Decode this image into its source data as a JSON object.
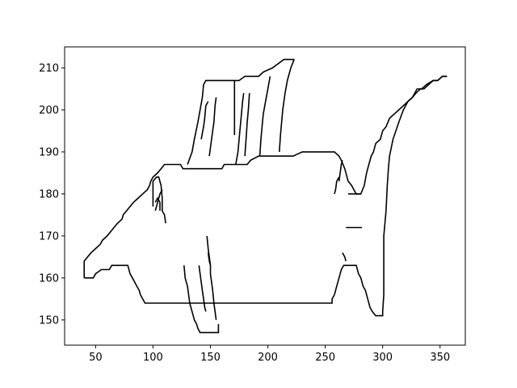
{
  "chart_data": {
    "type": "line",
    "title": "",
    "xlabel": "",
    "ylabel": "",
    "xlim": [
      23,
      372
    ],
    "ylim": [
      144,
      215
    ],
    "x_ticks": [
      50,
      100,
      150,
      200,
      250,
      300,
      350
    ],
    "y_ticks": [
      150,
      160,
      170,
      180,
      190,
      200,
      210
    ],
    "grid": false,
    "line_color": "#000000",
    "series": [
      {
        "points": [
          [
            40,
            160
          ],
          [
            40,
            164
          ],
          [
            43,
            165
          ],
          [
            46,
            166
          ],
          [
            50,
            167
          ],
          [
            54,
            168
          ],
          [
            56,
            169
          ],
          [
            60,
            170
          ],
          [
            63,
            171
          ],
          [
            66,
            172
          ],
          [
            69,
            173
          ],
          [
            73,
            174
          ],
          [
            74,
            175
          ],
          [
            77,
            176
          ],
          [
            80,
            177
          ],
          [
            83,
            178
          ],
          [
            87,
            179
          ],
          [
            91,
            180
          ],
          [
            95,
            181
          ],
          [
            97,
            182
          ],
          [
            98,
            183
          ],
          [
            100,
            184
          ],
          [
            104,
            185
          ],
          [
            107,
            186
          ],
          [
            110,
            187
          ],
          [
            124,
            187
          ],
          [
            126,
            186
          ],
          [
            144,
            186
          ],
          [
            152,
            186
          ],
          [
            160,
            186
          ],
          [
            162,
            187
          ],
          [
            182,
            187
          ],
          [
            185,
            188
          ],
          [
            192,
            189
          ],
          [
            222,
            189
          ],
          [
            230,
            190
          ],
          [
            258,
            190
          ],
          [
            262,
            189
          ],
          [
            264,
            188
          ],
          [
            267,
            186
          ],
          [
            270,
            183
          ],
          [
            273,
            182
          ],
          [
            275,
            181
          ],
          [
            277,
            180
          ],
          [
            281,
            180
          ],
          [
            284,
            182
          ],
          [
            286,
            185
          ],
          [
            288,
            187
          ],
          [
            290,
            189
          ],
          [
            292,
            190
          ],
          [
            294,
            192
          ],
          [
            298,
            193
          ],
          [
            300,
            195
          ],
          [
            303,
            196
          ],
          [
            306,
            198
          ],
          [
            310,
            199
          ],
          [
            314,
            200
          ],
          [
            318,
            201
          ],
          [
            322,
            202
          ],
          [
            326,
            203
          ],
          [
            329,
            204
          ],
          [
            333,
            205
          ],
          [
            336,
            205
          ],
          [
            340,
            206
          ],
          [
            344,
            207
          ],
          [
            348,
            207
          ],
          [
            352,
            208
          ],
          [
            356,
            208
          ]
        ]
      },
      {
        "points": [
          [
            40,
            160
          ],
          [
            48,
            160
          ],
          [
            50,
            161
          ],
          [
            55,
            162
          ],
          [
            62,
            162
          ],
          [
            64,
            163
          ],
          [
            78,
            163
          ],
          [
            79,
            162
          ],
          [
            80,
            161
          ],
          [
            82,
            160
          ],
          [
            84,
            159
          ],
          [
            86,
            158
          ],
          [
            88,
            157
          ],
          [
            89,
            156
          ],
          [
            91,
            155
          ],
          [
            93,
            154
          ],
          [
            208,
            154
          ],
          [
            215,
            154
          ],
          [
            240,
            154
          ],
          [
            256,
            154
          ],
          [
            256,
            155
          ],
          [
            258,
            156
          ],
          [
            260,
            158
          ],
          [
            262,
            160
          ],
          [
            264,
            162
          ],
          [
            266,
            163
          ],
          [
            277,
            163
          ],
          [
            279,
            161
          ],
          [
            281,
            160
          ],
          [
            283,
            158
          ],
          [
            285,
            157
          ],
          [
            287,
            155
          ],
          [
            289,
            153
          ],
          [
            291,
            152
          ],
          [
            294,
            151
          ],
          [
            300,
            151
          ],
          [
            300,
            152
          ],
          [
            301,
            156
          ],
          [
            301,
            162
          ],
          [
            301,
            170
          ],
          [
            303,
            176
          ],
          [
            304,
            182
          ],
          [
            305,
            186
          ],
          [
            306,
            189
          ],
          [
            309,
            193
          ],
          [
            314,
            197
          ],
          [
            318,
            200
          ],
          [
            322,
            202
          ],
          [
            326,
            203
          ],
          [
            330,
            205
          ],
          [
            334,
            205
          ],
          [
            338,
            206
          ],
          [
            344,
            207
          ],
          [
            348,
            207
          ],
          [
            352,
            208
          ],
          [
            356,
            208
          ]
        ]
      },
      {
        "points": [
          [
            100,
            177
          ],
          [
            100,
            183
          ],
          [
            103,
            184
          ],
          [
            105,
            184
          ],
          [
            107,
            182
          ],
          [
            108,
            179
          ],
          [
            108,
            176
          ],
          [
            110,
            175
          ],
          [
            111,
            173
          ]
        ]
      },
      {
        "points": [
          [
            102,
            176
          ],
          [
            104,
            178
          ],
          [
            106,
            180
          ],
          [
            108,
            181
          ]
        ]
      },
      {
        "points": [
          [
            102,
            178
          ],
          [
            104,
            179
          ],
          [
            106,
            178
          ],
          [
            106,
            176
          ]
        ]
      },
      {
        "points": [
          [
            130,
            187
          ],
          [
            134,
            190
          ],
          [
            136,
            193
          ],
          [
            139,
            197
          ],
          [
            141,
            200
          ],
          [
            143,
            203
          ],
          [
            144,
            206
          ],
          [
            146,
            207
          ],
          [
            168,
            207
          ],
          [
            171,
            207
          ]
        ]
      },
      {
        "points": [
          [
            142,
            193
          ],
          [
            144,
            196
          ],
          [
            145,
            198
          ],
          [
            146,
            201
          ],
          [
            148,
            202
          ]
        ]
      },
      {
        "points": [
          [
            149,
            189
          ],
          [
            150,
            191
          ],
          [
            151,
            193
          ],
          [
            152,
            195
          ],
          [
            153,
            197
          ],
          [
            154,
            201
          ],
          [
            155,
            203
          ]
        ]
      },
      {
        "points": [
          [
            171,
            207
          ],
          [
            171,
            194
          ]
        ]
      },
      {
        "points": [
          [
            171,
            207
          ],
          [
            175,
            207
          ],
          [
            180,
            208
          ],
          [
            192,
            208
          ],
          [
            196,
            209
          ],
          [
            204,
            210
          ],
          [
            214,
            212
          ],
          [
            216,
            212
          ],
          [
            223,
            212
          ]
        ]
      },
      {
        "points": [
          [
            172,
            187
          ],
          [
            174,
            190
          ],
          [
            175,
            193
          ],
          [
            176,
            196
          ],
          [
            177,
            199
          ],
          [
            178,
            202
          ],
          [
            179,
            204
          ]
        ]
      },
      {
        "points": [
          [
            180,
            189
          ],
          [
            181,
            193
          ],
          [
            182,
            197
          ],
          [
            183,
            200
          ],
          [
            184,
            204
          ]
        ]
      },
      {
        "points": [
          [
            193,
            189
          ],
          [
            194,
            193
          ],
          [
            195,
            196
          ],
          [
            196,
            199
          ],
          [
            198,
            202
          ],
          [
            200,
            205
          ],
          [
            202,
            208
          ]
        ]
      },
      {
        "points": [
          [
            210,
            190
          ],
          [
            211,
            194
          ],
          [
            212,
            197
          ],
          [
            213,
            200
          ],
          [
            215,
            204
          ],
          [
            217,
            207
          ],
          [
            220,
            210
          ],
          [
            223,
            212
          ]
        ]
      },
      {
        "points": [
          [
            127,
            163
          ],
          [
            128,
            160
          ],
          [
            130,
            158
          ],
          [
            131,
            156
          ],
          [
            132,
            154
          ],
          [
            133,
            153
          ],
          [
            135,
            151
          ],
          [
            136,
            150
          ],
          [
            138,
            149
          ],
          [
            139,
            148
          ],
          [
            141,
            147
          ],
          [
            157,
            147
          ],
          [
            157,
            149
          ]
        ]
      },
      {
        "points": [
          [
            140,
            163
          ],
          [
            141,
            161
          ],
          [
            142,
            159
          ],
          [
            143,
            157
          ],
          [
            144,
            155
          ],
          [
            145,
            153
          ],
          [
            146,
            152
          ]
        ]
      },
      {
        "points": [
          [
            147,
            170
          ],
          [
            148,
            167
          ],
          [
            149,
            165
          ],
          [
            150,
            163
          ],
          [
            150,
            161
          ],
          [
            151,
            159
          ],
          [
            152,
            157
          ],
          [
            153,
            154
          ],
          [
            154,
            152
          ],
          [
            155,
            150
          ]
        ]
      },
      {
        "points": [
          [
            148,
            166
          ],
          [
            149,
            164
          ],
          [
            150,
            163
          ]
        ]
      },
      {
        "points": [
          [
            258,
            180
          ],
          [
            259,
            181
          ],
          [
            260,
            183
          ],
          [
            262,
            184
          ]
        ]
      },
      {
        "points": [
          [
            262,
            183
          ],
          [
            263,
            185
          ],
          [
            264,
            187
          ],
          [
            265,
            188
          ]
        ]
      },
      {
        "points": [
          [
            270,
            180
          ],
          [
            280,
            180
          ]
        ]
      },
      {
        "points": [
          [
            268,
            172
          ],
          [
            282,
            172
          ]
        ]
      },
      {
        "points": [
          [
            265,
            166
          ],
          [
            267,
            165
          ],
          [
            268,
            164
          ]
        ]
      }
    ]
  }
}
